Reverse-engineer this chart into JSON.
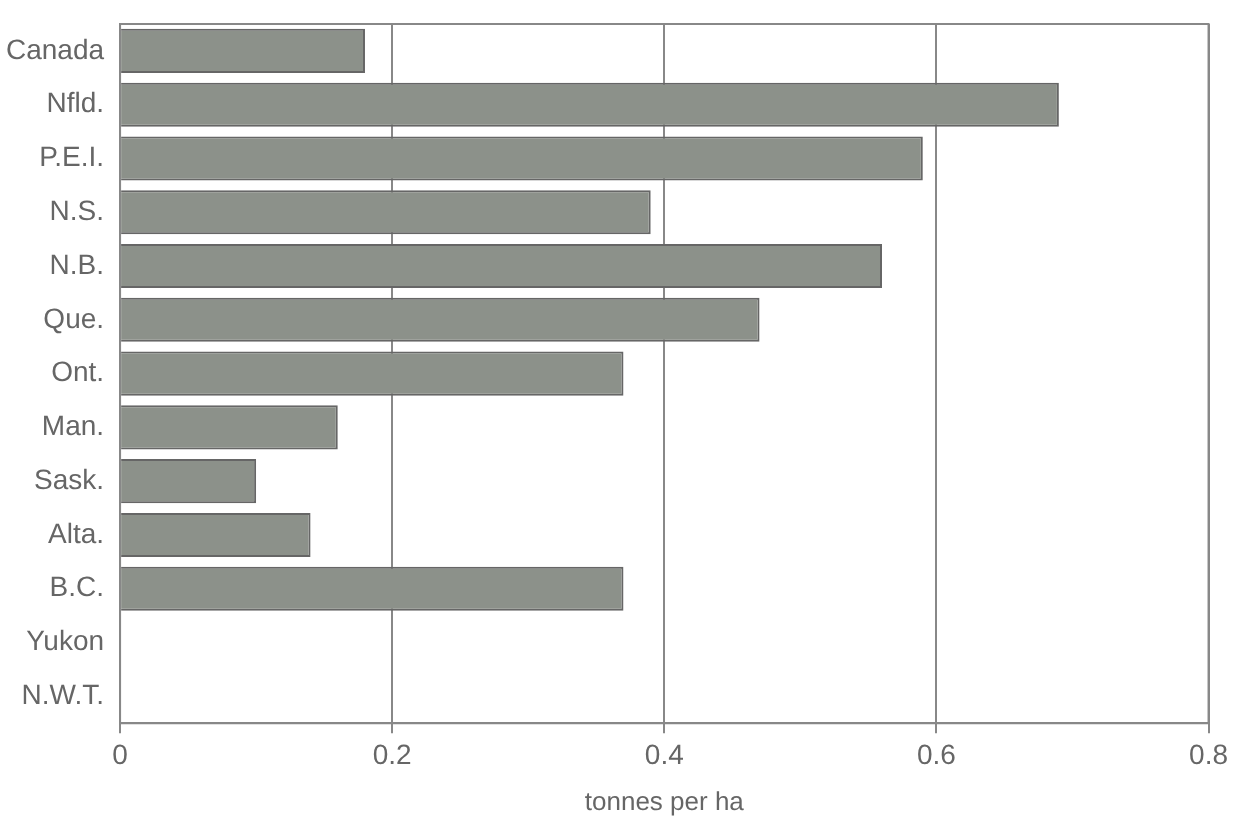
{
  "chart_data": {
    "type": "bar",
    "orientation": "horizontal",
    "xlabel": "tonnes per ha",
    "categories": [
      "Canada",
      "Nfld.",
      "P.E.I.",
      "N.S.",
      "N.B.",
      "Que.",
      "Ont.",
      "Man.",
      "Sask.",
      "Alta.",
      "B.C.",
      "Yukon",
      "N.W.T."
    ],
    "values": [
      0.18,
      0.69,
      0.59,
      0.39,
      0.56,
      0.47,
      0.37,
      0.16,
      0.1,
      0.14,
      0.37,
      null,
      null
    ],
    "color": "#8c918a",
    "xlim": [
      0,
      0.8
    ],
    "xticks": [
      0,
      0.2,
      0.4,
      0.6,
      0.8
    ],
    "grid": "x",
    "legend": false
  }
}
